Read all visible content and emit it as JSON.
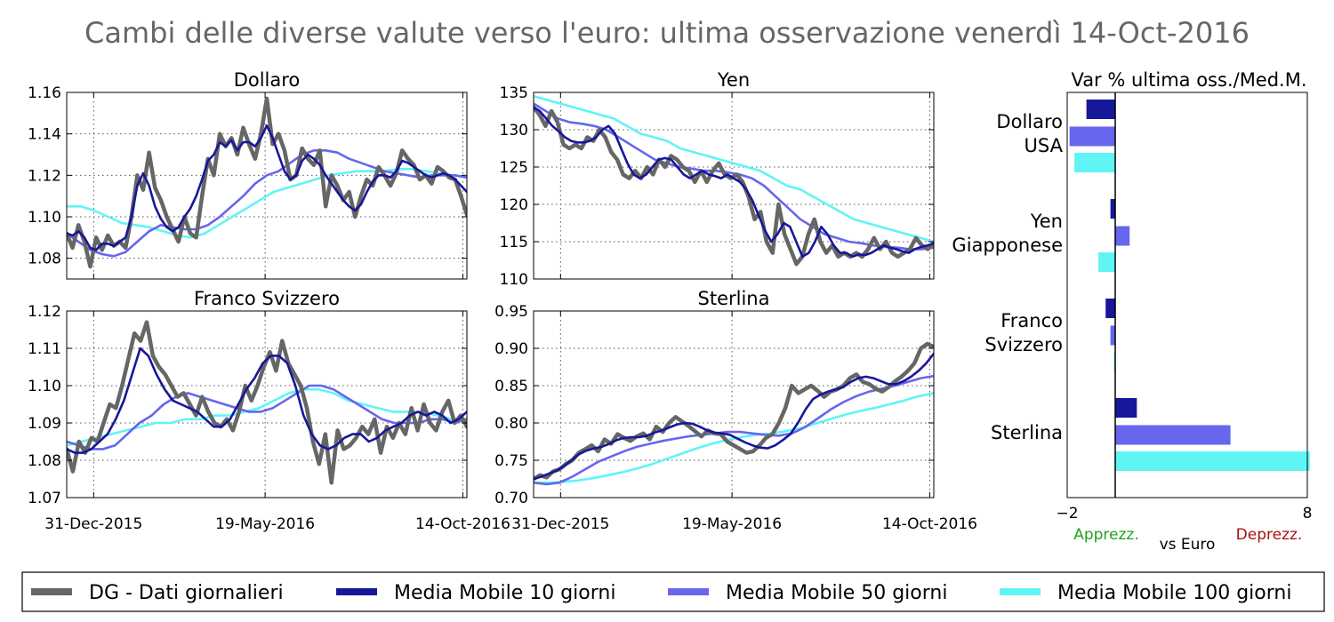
{
  "suptitle": "Cambi delle diverse valute verso l'euro: ultima osservazione venerdì 14-Oct-2016",
  "colors": {
    "daily": "#666666",
    "ma10": "#17179a",
    "ma50": "#6666ee",
    "ma100": "#5ff5f5",
    "apprezz": "#22a022",
    "deprezz": "#aa1111"
  },
  "x_ticks": [
    "31-Dec-2015",
    "19-May-2016",
    "14-Oct-2016"
  ],
  "legend": {
    "items": [
      {
        "label": "DG - Dati giornalieri",
        "color": "#666666"
      },
      {
        "label": "Media Mobile 10 giorni",
        "color": "#17179a"
      },
      {
        "label": "Media Mobile 50 giorni",
        "color": "#6666ee"
      },
      {
        "label": "Media Mobile 100 giorni",
        "color": "#5ff5f5"
      }
    ]
  },
  "chart_data": [
    {
      "type": "line",
      "title": "Dollaro",
      "ylim": [
        1.07,
        1.16
      ],
      "yticks": [
        1.08,
        1.1,
        1.12,
        1.14,
        1.16
      ],
      "ytick_labels": [
        "1.08",
        "1.10",
        "1.12",
        "1.14",
        "1.16"
      ],
      "x": [
        "2015-12-11",
        "2016-10-14"
      ],
      "series": [
        {
          "name": "DG - Dati giornalieri",
          "anchors": [
            1.092,
            1.085,
            1.096,
            1.088,
            1.076,
            1.09,
            1.084,
            1.091,
            1.086,
            1.088,
            1.085,
            1.1,
            1.12,
            1.113,
            1.131,
            1.114,
            1.108,
            1.1,
            1.094,
            1.088,
            1.1,
            1.092,
            1.09,
            1.11,
            1.128,
            1.12,
            1.14,
            1.134,
            1.138,
            1.13,
            1.143,
            1.135,
            1.128,
            1.14,
            1.157,
            1.135,
            1.14,
            1.132,
            1.118,
            1.12,
            1.133,
            1.128,
            1.125,
            1.132,
            1.105,
            1.12,
            1.115,
            1.108,
            1.112,
            1.1,
            1.11,
            1.118,
            1.115,
            1.124,
            1.12,
            1.115,
            1.121,
            1.132,
            1.128,
            1.125,
            1.118,
            1.12,
            1.116,
            1.124,
            1.122,
            1.119,
            1.118,
            1.11,
            1.101
          ]
        },
        {
          "name": "Media Mobile 10 giorni",
          "anchors": [
            1.092,
            1.091,
            1.093,
            1.09,
            1.085,
            1.084,
            1.087,
            1.087,
            1.086,
            1.088,
            1.09,
            1.1,
            1.115,
            1.121,
            1.115,
            1.105,
            1.099,
            1.095,
            1.093,
            1.095,
            1.1,
            1.104,
            1.11,
            1.118,
            1.127,
            1.13,
            1.136,
            1.134,
            1.137,
            1.132,
            1.136,
            1.136,
            1.134,
            1.138,
            1.144,
            1.138,
            1.13,
            1.122,
            1.118,
            1.12,
            1.127,
            1.13,
            1.128,
            1.125,
            1.12,
            1.116,
            1.112,
            1.108,
            1.105,
            1.103,
            1.106,
            1.112,
            1.117,
            1.12,
            1.12,
            1.119,
            1.122,
            1.127,
            1.126,
            1.124,
            1.122,
            1.12,
            1.119,
            1.12,
            1.121,
            1.12,
            1.118,
            1.115,
            1.112
          ]
        },
        {
          "name": "Media Mobile 50 giorni",
          "anchors": [
            1.092,
            1.088,
            1.084,
            1.082,
            1.081,
            1.083,
            1.088,
            1.093,
            1.096,
            1.095,
            1.094,
            1.094,
            1.096,
            1.1,
            1.105,
            1.11,
            1.116,
            1.12,
            1.122,
            1.126,
            1.13,
            1.132,
            1.132,
            1.131,
            1.128,
            1.126,
            1.124,
            1.122,
            1.121,
            1.12,
            1.119,
            1.12,
            1.12,
            1.12,
            1.119
          ]
        },
        {
          "name": "Media Mobile 100 giorni",
          "anchors": [
            1.105,
            1.105,
            1.103,
            1.1,
            1.097,
            1.096,
            1.095,
            1.093,
            1.091,
            1.09,
            1.092,
            1.096,
            1.1,
            1.104,
            1.108,
            1.112,
            1.114,
            1.116,
            1.118,
            1.12,
            1.121,
            1.122,
            1.122,
            1.122,
            1.123,
            1.123,
            1.122,
            1.121,
            1.12,
            1.119
          ]
        }
      ]
    },
    {
      "type": "line",
      "title": "Yen",
      "ylim": [
        110,
        135
      ],
      "yticks": [
        110,
        115,
        120,
        125,
        130,
        135
      ],
      "ytick_labels": [
        "110",
        "115",
        "120",
        "125",
        "130",
        "135"
      ],
      "x": [
        "2015-12-11",
        "2016-10-14"
      ],
      "series": [
        {
          "name": "DG - Dati giornalieri",
          "anchors": [
            133.0,
            132.0,
            130.5,
            132.5,
            131.0,
            128.0,
            127.5,
            128.0,
            127.5,
            129.0,
            128.5,
            130.0,
            129.0,
            127.0,
            126.0,
            124.0,
            123.5,
            124.5,
            123.5,
            125.0,
            124.0,
            126.0,
            125.0,
            126.5,
            126.0,
            125.0,
            124.5,
            123.0,
            124.5,
            123.0,
            124.5,
            125.5,
            124.0,
            123.5,
            124.0,
            123.0,
            121.0,
            118.0,
            119.0,
            115.0,
            113.5,
            120.0,
            116.0,
            114.0,
            112.0,
            113.0,
            116.0,
            118.0,
            115.0,
            113.5,
            114.5,
            113.0,
            113.5,
            113.0,
            113.5,
            113.0,
            114.0,
            115.5,
            114.0,
            115.0,
            113.5,
            113.0,
            113.5,
            114.0,
            115.5,
            114.5,
            114.0,
            114.8
          ]
        },
        {
          "name": "Media Mobile 10 giorni",
          "anchors": [
            133.0,
            132.5,
            131.5,
            130.5,
            129.8,
            129.0,
            128.5,
            128.3,
            128.3,
            128.5,
            129.0,
            130.0,
            130.5,
            129.5,
            127.5,
            125.5,
            124.0,
            123.5,
            124.0,
            125.0,
            126.0,
            126.2,
            126.0,
            125.0,
            124.0,
            123.5,
            124.0,
            124.5,
            124.0,
            123.8,
            123.5,
            124.0,
            123.5,
            123.0,
            122.0,
            120.5,
            118.5,
            116.5,
            115.0,
            116.0,
            117.5,
            117.0,
            115.0,
            113.0,
            113.5,
            115.0,
            117.0,
            116.0,
            114.5,
            113.5,
            113.5,
            113.0,
            113.3,
            113.2,
            113.5,
            114.0,
            114.5,
            114.2,
            114.0,
            113.7,
            113.5,
            114.0,
            114.3,
            114.5,
            114.8
          ]
        },
        {
          "name": "Media Mobile 50 giorni",
          "anchors": [
            133.5,
            132.5,
            131.5,
            131.0,
            130.8,
            130.5,
            130.0,
            129.0,
            128.0,
            127.0,
            126.0,
            125.5,
            125.0,
            124.8,
            124.5,
            124.5,
            124.3,
            124.0,
            123.5,
            122.5,
            121.0,
            119.5,
            118.0,
            117.0,
            116.0,
            115.5,
            115.0,
            114.8,
            114.5,
            114.3,
            114.2,
            114.0,
            114.0,
            114.2
          ]
        },
        {
          "name": "Media Mobile 100 giorni",
          "anchors": [
            134.5,
            134.0,
            133.5,
            133.0,
            132.5,
            132.0,
            131.5,
            130.5,
            129.5,
            129.0,
            128.5,
            127.5,
            127.0,
            126.5,
            126.0,
            125.5,
            125.0,
            124.5,
            123.5,
            122.5,
            122.0,
            121.0,
            120.0,
            119.0,
            118.0,
            117.5,
            117.0,
            116.5,
            116.0,
            115.5,
            115.0
          ]
        }
      ]
    },
    {
      "type": "line",
      "title": "Franco Svizzero",
      "ylim": [
        1.07,
        1.12
      ],
      "yticks": [
        1.07,
        1.08,
        1.09,
        1.1,
        1.11,
        1.12
      ],
      "ytick_labels": [
        "1.07",
        "1.08",
        "1.09",
        "1.10",
        "1.11",
        "1.12"
      ],
      "x": [
        "2015-12-11",
        "2016-10-14"
      ],
      "series": [
        {
          "name": "DG - Dati giornalieri",
          "anchors": [
            1.083,
            1.077,
            1.085,
            1.082,
            1.086,
            1.085,
            1.09,
            1.095,
            1.094,
            1.1,
            1.107,
            1.114,
            1.112,
            1.117,
            1.108,
            1.105,
            1.103,
            1.1,
            1.097,
            1.098,
            1.095,
            1.092,
            1.097,
            1.093,
            1.09,
            1.089,
            1.091,
            1.088,
            1.093,
            1.1,
            1.096,
            1.1,
            1.105,
            1.109,
            1.104,
            1.112,
            1.106,
            1.103,
            1.1,
            1.094,
            1.085,
            1.079,
            1.087,
            1.074,
            1.088,
            1.083,
            1.084,
            1.086,
            1.089,
            1.087,
            1.091,
            1.082,
            1.089,
            1.086,
            1.09,
            1.087,
            1.094,
            1.088,
            1.095,
            1.09,
            1.088,
            1.093,
            1.096,
            1.09,
            1.092,
            1.089
          ]
        },
        {
          "name": "Media Mobile 10 giorni",
          "anchors": [
            1.083,
            1.082,
            1.082,
            1.083,
            1.085,
            1.087,
            1.091,
            1.096,
            1.103,
            1.11,
            1.108,
            1.103,
            1.099,
            1.096,
            1.095,
            1.094,
            1.093,
            1.091,
            1.089,
            1.089,
            1.091,
            1.095,
            1.099,
            1.102,
            1.106,
            1.108,
            1.108,
            1.106,
            1.1,
            1.092,
            1.087,
            1.084,
            1.083,
            1.084,
            1.086,
            1.087,
            1.087,
            1.085,
            1.086,
            1.088,
            1.089,
            1.09,
            1.092,
            1.093,
            1.092,
            1.093,
            1.092,
            1.09,
            1.091,
            1.093
          ]
        },
        {
          "name": "Media Mobile 50 giorni",
          "anchors": [
            1.085,
            1.084,
            1.083,
            1.083,
            1.084,
            1.087,
            1.09,
            1.092,
            1.095,
            1.097,
            1.098,
            1.097,
            1.096,
            1.095,
            1.094,
            1.093,
            1.093,
            1.094,
            1.096,
            1.098,
            1.1,
            1.1,
            1.099,
            1.097,
            1.095,
            1.093,
            1.091,
            1.09,
            1.09,
            1.09,
            1.091,
            1.091,
            1.09,
            1.091
          ]
        },
        {
          "name": "Media Mobile 100 giorni",
          "anchors": [
            1.084,
            1.085,
            1.086,
            1.087,
            1.088,
            1.089,
            1.09,
            1.09,
            1.091,
            1.091,
            1.092,
            1.092,
            1.093,
            1.094,
            1.096,
            1.098,
            1.099,
            1.099,
            1.098,
            1.096,
            1.095,
            1.094,
            1.093,
            1.093,
            1.093,
            1.092,
            1.091,
            1.091
          ]
        }
      ]
    },
    {
      "type": "line",
      "title": "Sterlina",
      "ylim": [
        0.7,
        0.95
      ],
      "yticks": [
        0.7,
        0.75,
        0.8,
        0.85,
        0.9,
        0.95
      ],
      "ytick_labels": [
        "0.70",
        "0.75",
        "0.80",
        "0.85",
        "0.90",
        "0.95"
      ],
      "x": [
        "2015-12-11",
        "2016-10-14"
      ],
      "series": [
        {
          "name": "DG - Dati giornalieri",
          "anchors": [
            0.725,
            0.73,
            0.727,
            0.735,
            0.738,
            0.745,
            0.75,
            0.76,
            0.765,
            0.77,
            0.762,
            0.778,
            0.772,
            0.785,
            0.78,
            0.776,
            0.782,
            0.786,
            0.778,
            0.795,
            0.788,
            0.8,
            0.808,
            0.802,
            0.796,
            0.789,
            0.782,
            0.79,
            0.786,
            0.785,
            0.775,
            0.77,
            0.765,
            0.76,
            0.762,
            0.77,
            0.78,
            0.785,
            0.8,
            0.82,
            0.85,
            0.84,
            0.845,
            0.85,
            0.843,
            0.835,
            0.842,
            0.845,
            0.85,
            0.86,
            0.865,
            0.855,
            0.852,
            0.846,
            0.842,
            0.848,
            0.856,
            0.862,
            0.87,
            0.88,
            0.9,
            0.906,
            0.902
          ]
        },
        {
          "name": "Media Mobile 10 giorni",
          "anchors": [
            0.725,
            0.728,
            0.732,
            0.736,
            0.742,
            0.75,
            0.758,
            0.763,
            0.766,
            0.768,
            0.772,
            0.777,
            0.78,
            0.781,
            0.781,
            0.783,
            0.787,
            0.79,
            0.794,
            0.798,
            0.8,
            0.799,
            0.795,
            0.79,
            0.787,
            0.786,
            0.784,
            0.779,
            0.774,
            0.77,
            0.767,
            0.766,
            0.77,
            0.777,
            0.785,
            0.8,
            0.818,
            0.832,
            0.838,
            0.842,
            0.845,
            0.848,
            0.855,
            0.86,
            0.862,
            0.86,
            0.856,
            0.852,
            0.852,
            0.856,
            0.862,
            0.87,
            0.88,
            0.893
          ]
        },
        {
          "name": "Media Mobile 50 giorni",
          "anchors": [
            0.72,
            0.718,
            0.72,
            0.728,
            0.738,
            0.748,
            0.755,
            0.762,
            0.768,
            0.772,
            0.776,
            0.779,
            0.782,
            0.784,
            0.786,
            0.788,
            0.788,
            0.786,
            0.784,
            0.783,
            0.786,
            0.794,
            0.806,
            0.818,
            0.828,
            0.836,
            0.842,
            0.846,
            0.85,
            0.855,
            0.86,
            0.863
          ]
        },
        {
          "name": "Media Mobile 100 giorni",
          "anchors": [
            0.72,
            0.72,
            0.721,
            0.723,
            0.726,
            0.73,
            0.734,
            0.739,
            0.745,
            0.752,
            0.759,
            0.766,
            0.772,
            0.777,
            0.781,
            0.784,
            0.786,
            0.789,
            0.793,
            0.799,
            0.805,
            0.811,
            0.816,
            0.82,
            0.825,
            0.83,
            0.836,
            0.84
          ]
        }
      ]
    },
    {
      "type": "bar",
      "orientation": "horizontal",
      "title": "Var % ultima oss./Med.M.",
      "xlim": [
        -2,
        8
      ],
      "xticks": [
        -2,
        8
      ],
      "xtick_labels": [
        "−2",
        "8"
      ],
      "xlabel": "vs Euro",
      "left_note": "Apprezz.",
      "right_note": "Deprezz.",
      "categories": [
        "Dollaro\nUSA",
        "Yen\nGiapponese",
        "Franco\nSvizzero",
        "Sterlina"
      ],
      "series": [
        {
          "name": "Media Mobile 10 giorni",
          "values": [
            -1.2,
            -0.2,
            -0.4,
            0.9
          ]
        },
        {
          "name": "Media Mobile 50 giorni",
          "values": [
            -1.9,
            0.6,
            -0.2,
            4.8
          ]
        },
        {
          "name": "Media Mobile 100 giorni",
          "values": [
            -1.7,
            -0.7,
            -0.05,
            8.1
          ]
        }
      ]
    }
  ]
}
